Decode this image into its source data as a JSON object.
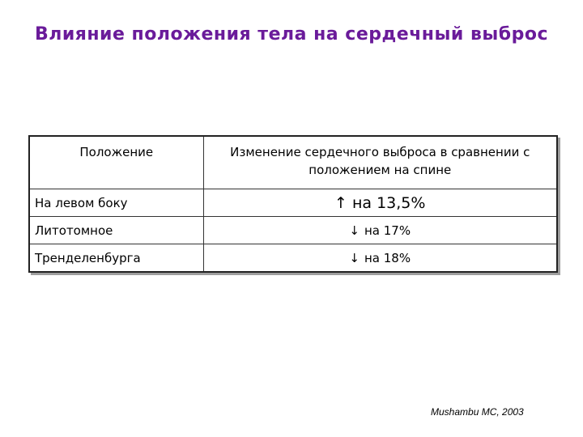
{
  "title": "Влияние положения тела на сердечный выброс",
  "table": {
    "headers": {
      "position": "Положение",
      "change": "Изменение сердечного выброса в сравнении с положением на спине"
    },
    "rows": [
      {
        "position": "На левом боку",
        "arrow": "↑",
        "change": "на 13,5%"
      },
      {
        "position": "Литотомное",
        "arrow": "↓",
        "change": "на 17%"
      },
      {
        "position": "Тренделенбурга",
        "arrow": "↓",
        "change": "на 18%"
      }
    ]
  },
  "citation": "Mushambu MC, 2003",
  "colors": {
    "title": "#6a1b9a",
    "text": "#000000",
    "background": "#ffffff"
  }
}
